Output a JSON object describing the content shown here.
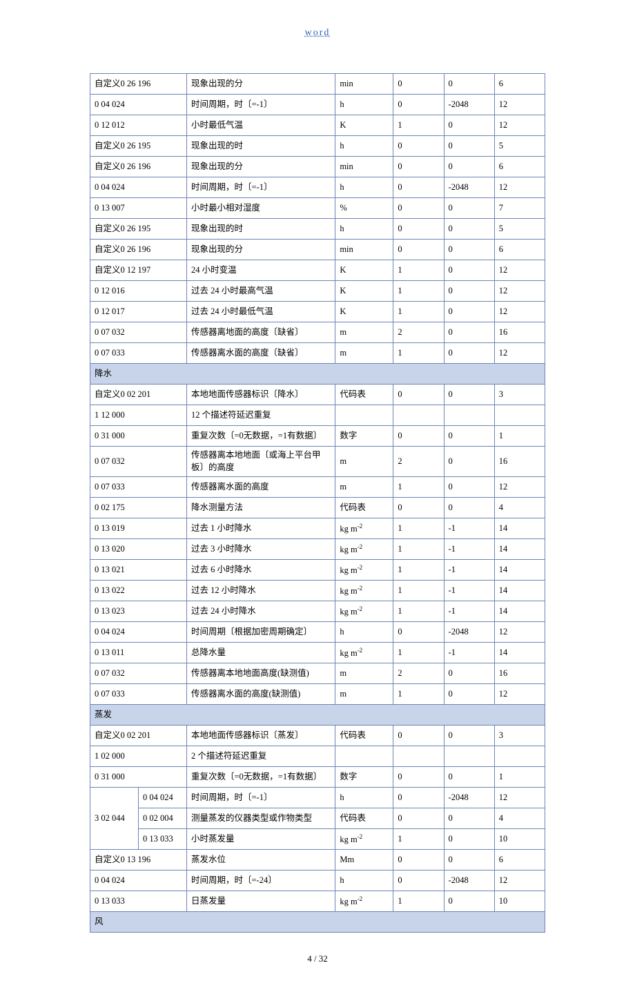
{
  "header": {
    "title": "word"
  },
  "footer": {
    "page_label": "4 / 32"
  },
  "table": {
    "col_widths": [
      "65px",
      "65px",
      "200px",
      "78px",
      "68px",
      "68px",
      "68px"
    ],
    "rows": [
      {
        "type": "row",
        "cells": [
          {
            "t": "自定义0 26 196",
            "span": 2
          },
          {
            "t": "现象出现的分"
          },
          {
            "t": "min"
          },
          {
            "t": "0"
          },
          {
            "t": "0"
          },
          {
            "t": "6"
          }
        ]
      },
      {
        "type": "row",
        "cells": [
          {
            "t": "0 04 024",
            "span": 2
          },
          {
            "t": "时间周期，时〔=-1〕"
          },
          {
            "t": "h"
          },
          {
            "t": "0"
          },
          {
            "t": "-2048"
          },
          {
            "t": "12"
          }
        ]
      },
      {
        "type": "row",
        "cells": [
          {
            "t": "0 12 012",
            "span": 2
          },
          {
            "t": "小时最低气温"
          },
          {
            "t": "K"
          },
          {
            "t": "1"
          },
          {
            "t": "0"
          },
          {
            "t": "12"
          }
        ]
      },
      {
        "type": "row",
        "cells": [
          {
            "t": "自定义0 26 195",
            "span": 2
          },
          {
            "t": "现象出现的时"
          },
          {
            "t": "h"
          },
          {
            "t": "0"
          },
          {
            "t": "0"
          },
          {
            "t": "5"
          }
        ]
      },
      {
        "type": "row",
        "cells": [
          {
            "t": "自定义0 26 196",
            "span": 2
          },
          {
            "t": "现象出现的分"
          },
          {
            "t": "min"
          },
          {
            "t": "0"
          },
          {
            "t": "0"
          },
          {
            "t": "6"
          }
        ]
      },
      {
        "type": "row",
        "cells": [
          {
            "t": "0 04 024",
            "span": 2
          },
          {
            "t": "时间周期，时〔=-1〕"
          },
          {
            "t": "h"
          },
          {
            "t": "0"
          },
          {
            "t": "-2048"
          },
          {
            "t": "12"
          }
        ]
      },
      {
        "type": "row",
        "cells": [
          {
            "t": "0 13 007",
            "span": 2
          },
          {
            "t": "小时最小相对湿度"
          },
          {
            "t": "%"
          },
          {
            "t": "0"
          },
          {
            "t": "0"
          },
          {
            "t": "7"
          }
        ]
      },
      {
        "type": "row",
        "cells": [
          {
            "t": "自定义0 26 195",
            "span": 2
          },
          {
            "t": "现象出现的时"
          },
          {
            "t": "h"
          },
          {
            "t": "0"
          },
          {
            "t": "0"
          },
          {
            "t": "5"
          }
        ]
      },
      {
        "type": "row",
        "cells": [
          {
            "t": "自定义0 26 196",
            "span": 2
          },
          {
            "t": "现象出现的分"
          },
          {
            "t": "min"
          },
          {
            "t": "0"
          },
          {
            "t": "0"
          },
          {
            "t": "6"
          }
        ]
      },
      {
        "type": "row",
        "cells": [
          {
            "t": "自定义0 12 197",
            "span": 2
          },
          {
            "t": "24 小时变温"
          },
          {
            "t": "K"
          },
          {
            "t": "1"
          },
          {
            "t": "0"
          },
          {
            "t": "12"
          }
        ]
      },
      {
        "type": "row",
        "cells": [
          {
            "t": "0 12 016",
            "span": 2
          },
          {
            "t": "过去 24 小时最高气温"
          },
          {
            "t": "K"
          },
          {
            "t": "1"
          },
          {
            "t": "0"
          },
          {
            "t": "12"
          }
        ]
      },
      {
        "type": "row",
        "cells": [
          {
            "t": "0 12 017",
            "span": 2
          },
          {
            "t": "过去 24 小时最低气温"
          },
          {
            "t": "K"
          },
          {
            "t": "1"
          },
          {
            "t": "0"
          },
          {
            "t": "12"
          }
        ]
      },
      {
        "type": "row",
        "cells": [
          {
            "t": "0 07 032",
            "span": 2
          },
          {
            "t": "传感器离地面的高度〔缺省〕"
          },
          {
            "t": "m"
          },
          {
            "t": "2"
          },
          {
            "t": "0"
          },
          {
            "t": "16"
          }
        ]
      },
      {
        "type": "row",
        "cells": [
          {
            "t": "0 07 033",
            "span": 2
          },
          {
            "t": "传感器离水面的高度〔缺省〕"
          },
          {
            "t": "m"
          },
          {
            "t": "1"
          },
          {
            "t": "0"
          },
          {
            "t": "12"
          }
        ]
      },
      {
        "type": "section",
        "label": "降水"
      },
      {
        "type": "row",
        "cells": [
          {
            "t": "自定义0 02 201",
            "span": 2
          },
          {
            "t": "本地地面传感器标识〔降水〕"
          },
          {
            "t": "代码表"
          },
          {
            "t": "0"
          },
          {
            "t": "0"
          },
          {
            "t": "3"
          }
        ]
      },
      {
        "type": "row",
        "cells": [
          {
            "t": "1 12 000",
            "span": 2
          },
          {
            "t": "12 个描述符延迟重复"
          },
          {
            "t": ""
          },
          {
            "t": ""
          },
          {
            "t": ""
          },
          {
            "t": ""
          }
        ]
      },
      {
        "type": "row",
        "cells": [
          {
            "t": "0 31 000",
            "span": 2
          },
          {
            "t": "重复次数〔=0无数据，=1有数据〕"
          },
          {
            "t": "数字"
          },
          {
            "t": "0"
          },
          {
            "t": "0"
          },
          {
            "t": "1"
          }
        ]
      },
      {
        "type": "row",
        "cells": [
          {
            "t": "0 07 032",
            "span": 2
          },
          {
            "t": "传感器离本地地面〔或海上平台甲板〕的高度"
          },
          {
            "t": "m"
          },
          {
            "t": "2"
          },
          {
            "t": "0"
          },
          {
            "t": "16"
          }
        ]
      },
      {
        "type": "row",
        "cells": [
          {
            "t": "0 07 033",
            "span": 2
          },
          {
            "t": "传感器离水面的高度"
          },
          {
            "t": "m"
          },
          {
            "t": "1"
          },
          {
            "t": "0"
          },
          {
            "t": "12"
          }
        ]
      },
      {
        "type": "row",
        "cells": [
          {
            "t": "0 02 175",
            "span": 2
          },
          {
            "t": "降水测量方法"
          },
          {
            "t": "代码表"
          },
          {
            "t": "0"
          },
          {
            "t": "0"
          },
          {
            "t": "4"
          }
        ]
      },
      {
        "type": "row",
        "cells": [
          {
            "t": "0 13 019",
            "span": 2
          },
          {
            "t": "过去 1 小时降水"
          },
          {
            "html": "kg m<sup>-2</sup>"
          },
          {
            "t": "1"
          },
          {
            "t": "-1"
          },
          {
            "t": "14"
          }
        ]
      },
      {
        "type": "row",
        "cells": [
          {
            "t": "0 13 020",
            "span": 2
          },
          {
            "t": "过去 3 小时降水"
          },
          {
            "html": "kg m<sup>-2</sup>"
          },
          {
            "t": "1"
          },
          {
            "t": "-1"
          },
          {
            "t": "14"
          }
        ]
      },
      {
        "type": "row",
        "cells": [
          {
            "t": "0 13 021",
            "span": 2
          },
          {
            "t": "过去 6 小时降水"
          },
          {
            "html": "kg m<sup>-2</sup>"
          },
          {
            "t": "1"
          },
          {
            "t": "-1"
          },
          {
            "t": "14"
          }
        ]
      },
      {
        "type": "row",
        "cells": [
          {
            "t": "0 13 022",
            "span": 2
          },
          {
            "t": "过去 12 小时降水"
          },
          {
            "html": "kg m<sup>-2</sup>"
          },
          {
            "t": "1"
          },
          {
            "t": "-1"
          },
          {
            "t": "14"
          }
        ]
      },
      {
        "type": "row",
        "cells": [
          {
            "t": "0 13 023",
            "span": 2
          },
          {
            "t": "过去 24 小时降水"
          },
          {
            "html": "kg m<sup>-2</sup>"
          },
          {
            "t": "1"
          },
          {
            "t": "-1"
          },
          {
            "t": "14"
          }
        ]
      },
      {
        "type": "row",
        "cells": [
          {
            "t": "0 04 024",
            "span": 2
          },
          {
            "t": "时间周期〔根据加密周期确定〕"
          },
          {
            "t": "h"
          },
          {
            "t": "0"
          },
          {
            "t": "-2048"
          },
          {
            "t": "12"
          }
        ]
      },
      {
        "type": "row",
        "cells": [
          {
            "t": "0 13 011",
            "span": 2
          },
          {
            "t": "总降水量"
          },
          {
            "html": "kg m<sup>-2</sup>"
          },
          {
            "t": "1"
          },
          {
            "t": "-1"
          },
          {
            "t": "14"
          }
        ]
      },
      {
        "type": "row",
        "cells": [
          {
            "t": "0 07 032",
            "span": 2
          },
          {
            "t": "传感器离本地地面高度(缺测值)"
          },
          {
            "t": "m"
          },
          {
            "t": "2"
          },
          {
            "t": "0"
          },
          {
            "t": "16"
          }
        ]
      },
      {
        "type": "row",
        "cells": [
          {
            "t": "0 07 033",
            "span": 2
          },
          {
            "t": "传感器离水面的高度(缺测值)"
          },
          {
            "t": "m"
          },
          {
            "t": "1"
          },
          {
            "t": "0"
          },
          {
            "t": "12"
          }
        ]
      },
      {
        "type": "section",
        "label": "蒸发"
      },
      {
        "type": "row",
        "cells": [
          {
            "t": "自定义0 02 201",
            "span": 2
          },
          {
            "t": "本地地面传感器标识〔蒸发〕"
          },
          {
            "t": "代码表"
          },
          {
            "t": "0"
          },
          {
            "t": "0"
          },
          {
            "t": "3"
          }
        ]
      },
      {
        "type": "row",
        "cells": [
          {
            "t": "1 02 000",
            "span": 2
          },
          {
            "t": "2 个描述符延迟重复"
          },
          {
            "t": ""
          },
          {
            "t": ""
          },
          {
            "t": ""
          },
          {
            "t": ""
          }
        ]
      },
      {
        "type": "row",
        "cells": [
          {
            "t": "0 31 000",
            "span": 2
          },
          {
            "t": "重复次数〔=0无数据，=1有数据〕"
          },
          {
            "t": "数字"
          },
          {
            "t": "0"
          },
          {
            "t": "0"
          },
          {
            "t": "1"
          }
        ]
      },
      {
        "type": "row",
        "cells": [
          {
            "t": "3 02 044",
            "rowspan": 3
          },
          {
            "t": "0 04 024"
          },
          {
            "t": "时间周期，时〔=-1〕"
          },
          {
            "t": "h"
          },
          {
            "t": "0"
          },
          {
            "t": "-2048"
          },
          {
            "t": "12"
          }
        ]
      },
      {
        "type": "row",
        "cells": [
          {
            "t": "0 02 004"
          },
          {
            "t": "测量蒸发的仪器类型或作物类型"
          },
          {
            "t": "代码表"
          },
          {
            "t": "0"
          },
          {
            "t": "0"
          },
          {
            "t": "4"
          }
        ]
      },
      {
        "type": "row",
        "cells": [
          {
            "t": "0 13 033"
          },
          {
            "t": "小时蒸发量"
          },
          {
            "html": "kg m<sup>-2</sup>"
          },
          {
            "t": "1"
          },
          {
            "t": "0"
          },
          {
            "t": "10"
          }
        ]
      },
      {
        "type": "row",
        "cells": [
          {
            "t": "自定义0 13 196",
            "span": 2
          },
          {
            "t": "蒸发水位"
          },
          {
            "t": "Mm"
          },
          {
            "t": "0"
          },
          {
            "t": "0"
          },
          {
            "t": "6"
          }
        ]
      },
      {
        "type": "row",
        "cells": [
          {
            "t": "0 04 024",
            "span": 2
          },
          {
            "t": "时间周期，时〔=-24〕"
          },
          {
            "t": "h"
          },
          {
            "t": "0"
          },
          {
            "t": "-2048"
          },
          {
            "t": "12"
          }
        ]
      },
      {
        "type": "row",
        "cells": [
          {
            "t": "0 13 033",
            "span": 2
          },
          {
            "t": "日蒸发量"
          },
          {
            "html": "kg m<sup>-2</sup>"
          },
          {
            "t": "1"
          },
          {
            "t": "0"
          },
          {
            "t": "10"
          }
        ]
      },
      {
        "type": "section",
        "label": "风"
      }
    ]
  }
}
